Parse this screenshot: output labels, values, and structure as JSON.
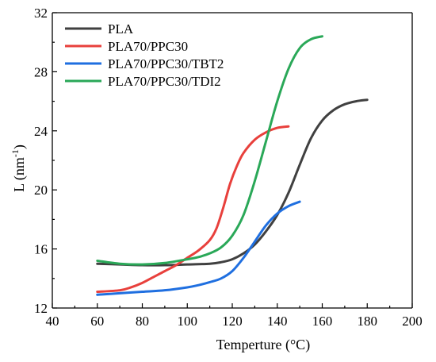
{
  "chart_data": {
    "type": "line",
    "xlabel": "Temperture (°C)",
    "ylabel_main": "L (nm",
    "ylabel_sup": "-1",
    "ylabel_close": ")",
    "xlim": [
      40,
      200
    ],
    "ylim": [
      12,
      32
    ],
    "xticks": [
      40,
      60,
      80,
      100,
      120,
      140,
      160,
      180,
      200
    ],
    "yticks": [
      12,
      16,
      20,
      24,
      28,
      32
    ],
    "legend_position": "top-left",
    "grid": false,
    "series": [
      {
        "name": "PLA",
        "color": "#404040",
        "x": [
          60,
          70,
          80,
          90,
          100,
          110,
          115,
          120,
          125,
          130,
          135,
          140,
          145,
          150,
          155,
          160,
          165,
          170,
          175,
          180
        ],
        "y": [
          15.0,
          14.95,
          14.9,
          14.9,
          14.95,
          15.0,
          15.1,
          15.3,
          15.7,
          16.3,
          17.2,
          18.3,
          19.8,
          21.7,
          23.5,
          24.7,
          25.4,
          25.8,
          26.0,
          26.1
        ]
      },
      {
        "name": "PLA70/PPC30",
        "color": "#e8403c",
        "x": [
          60,
          70,
          75,
          80,
          85,
          90,
          95,
          100,
          105,
          110,
          113,
          116,
          119,
          122,
          125,
          130,
          135,
          140,
          145
        ],
        "y": [
          13.1,
          13.2,
          13.4,
          13.7,
          14.1,
          14.5,
          14.9,
          15.4,
          15.9,
          16.6,
          17.4,
          18.8,
          20.4,
          21.6,
          22.5,
          23.4,
          23.9,
          24.2,
          24.3
        ]
      },
      {
        "name": "PLA70/PPC30/TBT2",
        "color": "#1f6fe0",
        "x": [
          60,
          70,
          80,
          90,
          100,
          105,
          110,
          115,
          120,
          125,
          130,
          135,
          140,
          145,
          150
        ],
        "y": [
          12.9,
          13.0,
          13.1,
          13.2,
          13.4,
          13.55,
          13.75,
          14.0,
          14.5,
          15.4,
          16.5,
          17.6,
          18.4,
          18.9,
          19.2
        ]
      },
      {
        "name": "PLA70/PPC30/TDI2",
        "color": "#2aa858",
        "x": [
          60,
          70,
          80,
          90,
          100,
          105,
          110,
          115,
          120,
          125,
          130,
          135,
          140,
          145,
          150,
          155,
          160
        ],
        "y": [
          15.2,
          15.0,
          14.95,
          15.05,
          15.3,
          15.45,
          15.7,
          16.1,
          16.9,
          18.3,
          20.6,
          23.3,
          26.0,
          28.2,
          29.6,
          30.2,
          30.4
        ]
      }
    ]
  }
}
